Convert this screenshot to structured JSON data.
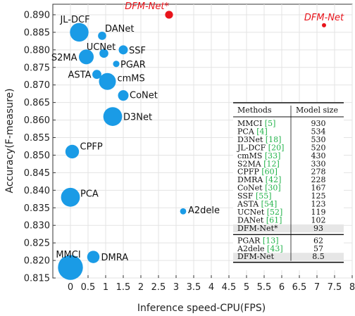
{
  "chart_data": {
    "type": "scatter",
    "xlabel": "Inference speed-CPU(FPS)",
    "ylabel": "Accuracy(F-measure)",
    "xlim": [
      -0.5,
      8
    ],
    "ylim": [
      0.815,
      0.893
    ],
    "xticks": [
      "0",
      "0.5",
      "1",
      "1.5",
      "2",
      "2.5",
      "3",
      "3.5",
      "4",
      "4.5",
      "5",
      "5.5",
      "6",
      "6.5",
      "7",
      "7.5",
      "8"
    ],
    "yticks": [
      "0.815",
      "0.820",
      "0.825",
      "0.830",
      "0.835",
      "0.840",
      "0.845",
      "0.850",
      "0.855",
      "0.860",
      "0.865",
      "0.870",
      "0.875",
      "0.880",
      "0.885",
      "0.890"
    ],
    "grid": true,
    "points": [
      {
        "label": "DFM-Net*",
        "x": 2.8,
        "y": 0.89,
        "size": 93,
        "color": "#e8141b",
        "highlight": true
      },
      {
        "label": "DFM-Net",
        "x": 7.2,
        "y": 0.887,
        "size": 8.5,
        "color": "#e8141b",
        "highlight": true
      },
      {
        "label": "JL-DCF",
        "x": 0.25,
        "y": 0.885,
        "size": 520,
        "color": "#1a9be6"
      },
      {
        "label": "DANet",
        "x": 0.9,
        "y": 0.884,
        "size": 102,
        "color": "#1a9be6"
      },
      {
        "label": "UCNet",
        "x": 0.95,
        "y": 0.879,
        "size": 119,
        "color": "#1a9be6"
      },
      {
        "label": "SSF",
        "x": 1.5,
        "y": 0.88,
        "size": 125,
        "color": "#1a9be6"
      },
      {
        "label": "S2MA",
        "x": 0.45,
        "y": 0.878,
        "size": 330,
        "color": "#1a9be6"
      },
      {
        "label": "PGAR",
        "x": 1.3,
        "y": 0.876,
        "size": 62,
        "color": "#1a9be6"
      },
      {
        "label": "ASTA",
        "x": 0.75,
        "y": 0.873,
        "size": 123,
        "color": "#1a9be6"
      },
      {
        "label": "cmMS",
        "x": 1.05,
        "y": 0.871,
        "size": 430,
        "color": "#1a9be6"
      },
      {
        "label": "CoNet",
        "x": 1.5,
        "y": 0.867,
        "size": 167,
        "color": "#1a9be6"
      },
      {
        "label": "D3Net",
        "x": 1.2,
        "y": 0.861,
        "size": 530,
        "color": "#1a9be6"
      },
      {
        "label": "CPFP",
        "x": 0.05,
        "y": 0.851,
        "size": 278,
        "color": "#1a9be6"
      },
      {
        "label": "PCA",
        "x": 0.0,
        "y": 0.838,
        "size": 534,
        "color": "#1a9be6"
      },
      {
        "label": "A2dele",
        "x": 3.2,
        "y": 0.834,
        "size": 57,
        "color": "#1a9be6"
      },
      {
        "label": "MMCI",
        "x": 0.0,
        "y": 0.818,
        "size": 930,
        "color": "#1a9be6"
      },
      {
        "label": "DMRA",
        "x": 0.65,
        "y": 0.821,
        "size": 228,
        "color": "#1a9be6"
      }
    ],
    "table": {
      "headers": [
        "Methods",
        "Model size"
      ],
      "rows": [
        {
          "name": "MMCI",
          "cite": "[5]",
          "size": "930"
        },
        {
          "name": "PCA",
          "cite": "[4]",
          "size": "534"
        },
        {
          "name": "D3Net",
          "cite": "[18]",
          "size": "530"
        },
        {
          "name": "JL-DCF",
          "cite": "[20]",
          "size": "520"
        },
        {
          "name": "cmMS",
          "cite": "[33]",
          "size": "430"
        },
        {
          "name": "S2MA",
          "cite": "[12]",
          "size": "330"
        },
        {
          "name": "CPFP",
          "cite": "[60]",
          "size": "278"
        },
        {
          "name": "DMRA",
          "cite": "[42]",
          "size": "228"
        },
        {
          "name": "CoNet",
          "cite": "[30]",
          "size": "167"
        },
        {
          "name": "SSF",
          "cite": "[55]",
          "size": "125"
        },
        {
          "name": "ASTA",
          "cite": "[54]",
          "size": "123"
        },
        {
          "name": "UCNet",
          "cite": "[52]",
          "size": "119"
        },
        {
          "name": "DANet",
          "cite": "[61]",
          "size": "102"
        },
        {
          "name": "DFM-Net*",
          "cite": "",
          "size": "93",
          "shaded": true
        },
        {
          "name": "PGAR",
          "cite": "[13]",
          "size": "62"
        },
        {
          "name": "A2dele",
          "cite": "[43]",
          "size": "57"
        },
        {
          "name": "DFM-Net",
          "cite": "",
          "size": "8.5",
          "shaded": true
        }
      ]
    }
  }
}
